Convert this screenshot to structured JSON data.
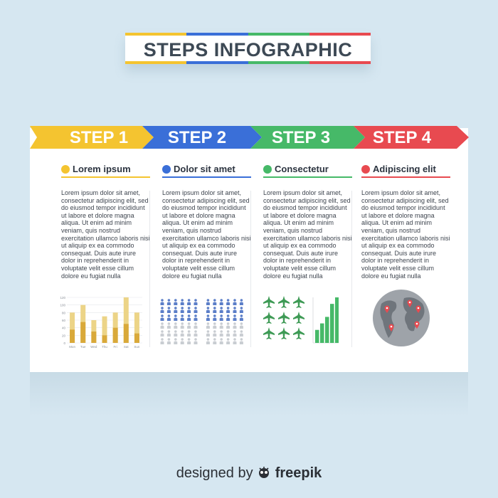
{
  "title": "STEPS INFOGRAPHIC",
  "colors": {
    "yellow": "#f4c430",
    "blue": "#3a6fd8",
    "green": "#46b968",
    "red": "#e84a50",
    "gold": "#d9a93a",
    "goldLight": "#ecd487",
    "iconBlue": "#5b7ec8",
    "iconGrey": "#c9cdd2",
    "plane": "#3e9a55",
    "globe": "#9ea3a9",
    "land": "#6f757c"
  },
  "steps": [
    {
      "label": "STEP 1",
      "heading": "Lorem ipsum",
      "color": "#f4c430",
      "icon": "yellow-dot-icon"
    },
    {
      "label": "STEP 2",
      "heading": "Dolor sit amet",
      "color": "#3a6fd8",
      "icon": "blue-dot-icon"
    },
    {
      "label": "STEP 3",
      "heading": "Consectetur",
      "color": "#46b968",
      "icon": "green-dot-icon"
    },
    {
      "label": "STEP 4",
      "heading": "Adipiscing elit",
      "color": "#e84a50",
      "icon": "red-dot-icon"
    }
  ],
  "body_text": "Lorem ipsum dolor sit amet, consectetur adipiscing elit, sed do eiusmod tempor incididunt ut labore et dolore magna aliqua. Ut enim ad minim veniam, quis nostrud exercitation ullamco laboris nisi ut aliquip ex ea commodo consequat. Duis aute irure dolor in reprehenderit in voluptate velit esse cillum dolore eu fugiat nulla",
  "chart_data": {
    "type": "bar",
    "categories": [
      "Mon",
      "Tue",
      "Wed",
      "Thu",
      "Fri",
      "Sat",
      "Sun"
    ],
    "series": [
      {
        "values": [
          80,
          100,
          60,
          70,
          80,
          120,
          80
        ]
      },
      {
        "values": [
          35,
          55,
          30,
          20,
          40,
          50,
          25
        ]
      }
    ],
    "yticks": [
      0,
      20,
      40,
      60,
      80,
      100,
      120
    ],
    "ylim": [
      0,
      120
    ]
  },
  "people_grid": {
    "rows": 6,
    "cols": 12,
    "blue_rows": 3
  },
  "growth_bars": {
    "values": [
      2,
      3,
      4,
      6,
      7
    ]
  },
  "map_pins": {
    "count": 5
  },
  "credit": {
    "prefix": "designed by",
    "brand": "freepik",
    "brand_icon": "freepik-logo-icon"
  }
}
